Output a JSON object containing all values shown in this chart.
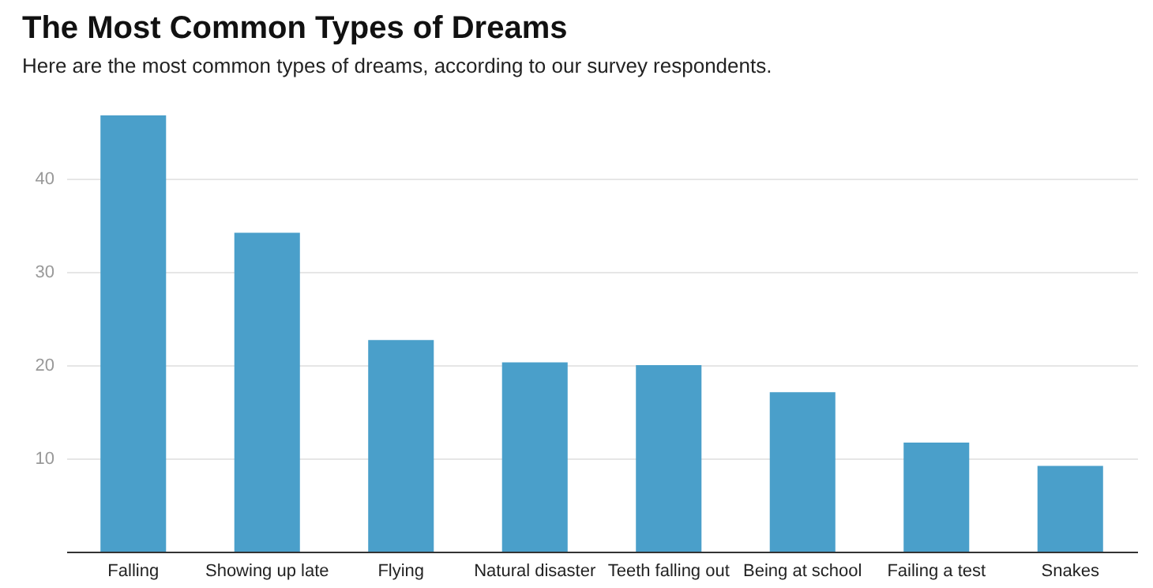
{
  "chart_data": {
    "type": "bar",
    "title": "The Most Common Types of Dreams",
    "subtitle": "Here are the most common types of dreams, according to our survey respondents.",
    "categories": [
      "Falling",
      "Showing up late",
      "Flying",
      "Natural disaster",
      "Teeth falling out",
      "Being at school",
      "Failing a test",
      "Snakes"
    ],
    "values": [
      46.8,
      34.2,
      22.7,
      20.3,
      20.0,
      17.1,
      11.7,
      9.2
    ],
    "color": "#4a9fca",
    "ylim": [
      0,
      46.8
    ],
    "yticks": [
      10,
      20,
      30,
      40
    ],
    "grid": "y"
  }
}
